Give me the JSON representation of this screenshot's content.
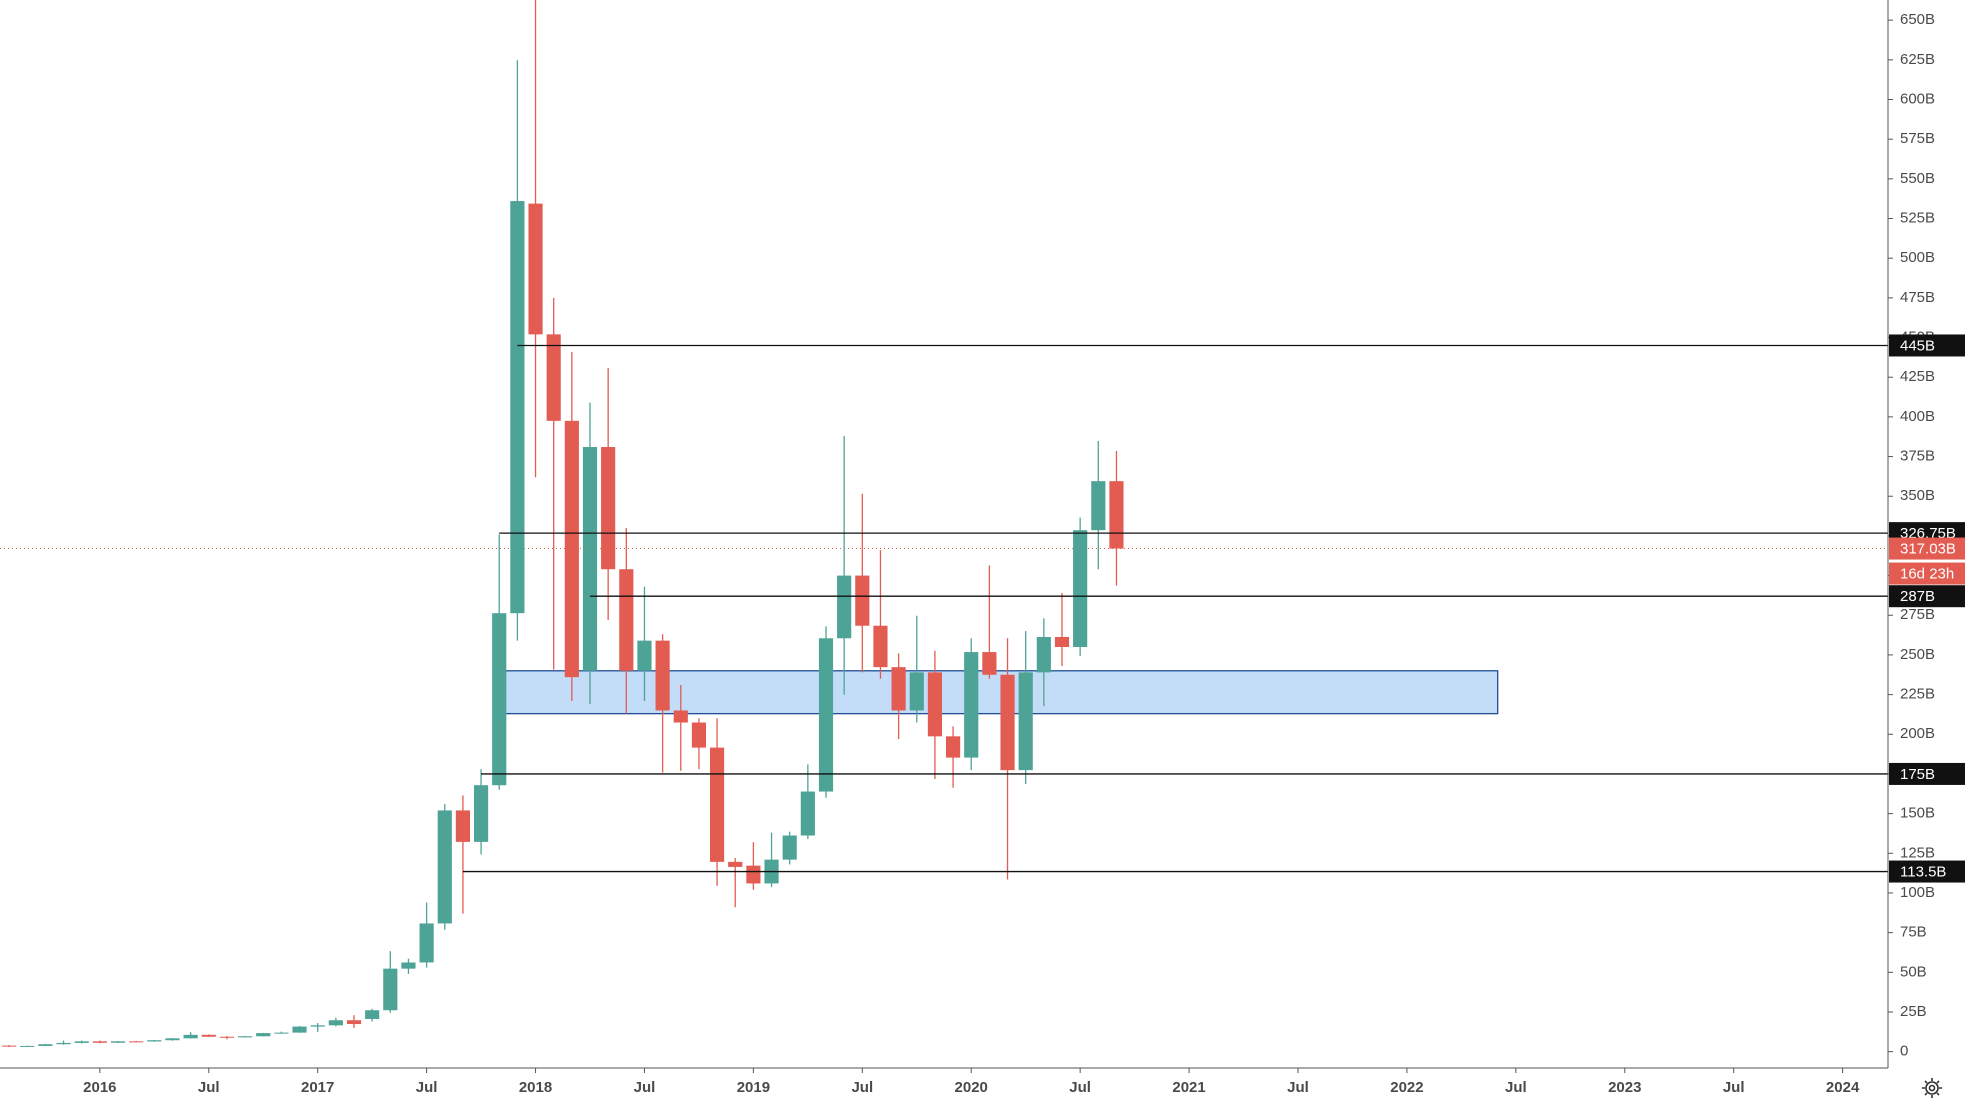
{
  "chart_data": {
    "type": "candlestick",
    "x": [
      "2015-08",
      "2015-09",
      "2015-10",
      "2015-11",
      "2015-12",
      "2016-01",
      "2016-02",
      "2016-03",
      "2016-04",
      "2016-05",
      "2016-06",
      "2016-07",
      "2016-08",
      "2016-09",
      "2016-10",
      "2016-11",
      "2016-12",
      "2017-01",
      "2017-02",
      "2017-03",
      "2017-04",
      "2017-05",
      "2017-06",
      "2017-07",
      "2017-08",
      "2017-09",
      "2017-10",
      "2017-11",
      "2017-12",
      "2018-01",
      "2018-02",
      "2018-03",
      "2018-04",
      "2018-05",
      "2018-06",
      "2018-07",
      "2018-08",
      "2018-09",
      "2018-10",
      "2018-11",
      "2018-12",
      "2019-01",
      "2019-02",
      "2019-03",
      "2019-04",
      "2019-05",
      "2019-06",
      "2019-07",
      "2019-08",
      "2019-09",
      "2019-10",
      "2019-11",
      "2019-12",
      "2020-01",
      "2020-02",
      "2020-03",
      "2020-04",
      "2020-05",
      "2020-06",
      "2020-07",
      "2020-08",
      "2020-09"
    ],
    "open": [
      3.8,
      3.4,
      3.6,
      4.7,
      5.5,
      6.5,
      5.6,
      6.5,
      6.4,
      7.2,
      8.4,
      10.6,
      9.4,
      9.0,
      9.7,
      11.7,
      12.0,
      15.8,
      16.6,
      19.8,
      20.6,
      26.1,
      52.3,
      56.2,
      80.8,
      152.0,
      132.2,
      167.9,
      276.3,
      534.4,
      452.0,
      397.5,
      240.0,
      381.0,
      304.0,
      240.0,
      259.0,
      215.0,
      207.4,
      191.6,
      119.6,
      117.2,
      106.0,
      121.0,
      136.2,
      163.9,
      260.5,
      300.0,
      268.4,
      242.3,
      215.0,
      239.0,
      198.7,
      185.3,
      251.8,
      237.5,
      177.4,
      239.0,
      261.3,
      255.0,
      328.6,
      359.5
    ],
    "high": [
      4.1,
      3.8,
      4.9,
      7.0,
      7.0,
      7.0,
      6.6,
      6.8,
      7.4,
      8.6,
      12.3,
      10.9,
      9.8,
      9.8,
      11.8,
      12.6,
      16.2,
      18.0,
      21.4,
      23.0,
      27.0,
      63.3,
      58.6,
      94.0,
      156.0,
      161.5,
      178.0,
      326.0,
      624.7,
      680.0,
      475.0,
      441.0,
      409.0,
      430.7,
      330.0,
      293.0,
      263.0,
      231.0,
      210.0,
      210.0,
      122.0,
      132.0,
      138.0,
      138.6,
      181.0,
      268.0,
      388.0,
      351.5,
      316.0,
      251.0,
      274.7,
      252.6,
      205.0,
      260.5,
      306.4,
      260.5,
      265.0,
      273.0,
      289.0,
      336.5,
      384.8,
      378.5
    ],
    "low": [
      2.9,
      3.3,
      3.5,
      4.4,
      5.2,
      5.3,
      5.5,
      6.1,
      6.3,
      6.9,
      8.3,
      9.3,
      7.8,
      8.9,
      9.6,
      11.4,
      11.9,
      12.5,
      16.0,
      15.0,
      19.0,
      24.5,
      49.0,
      53.0,
      76.8,
      87.0,
      124.3,
      165.0,
      259.0,
      362.0,
      240.7,
      221.0,
      219.0,
      272.0,
      213.0,
      221.0,
      175.8,
      177.0,
      178.0,
      104.5,
      91.0,
      102.0,
      103.7,
      118.0,
      134.0,
      160.0,
      224.9,
      239.0,
      235.0,
      197.0,
      207.4,
      171.8,
      166.3,
      177.4,
      235.0,
      108.5,
      168.6,
      217.7,
      243.0,
      249.4,
      304.0,
      293.7
    ],
    "close": [
      3.4,
      3.6,
      4.7,
      5.5,
      6.5,
      5.6,
      6.5,
      6.4,
      7.2,
      8.4,
      10.6,
      9.4,
      9.0,
      9.7,
      11.7,
      12.0,
      15.8,
      16.6,
      19.8,
      17.4,
      26.1,
      52.3,
      56.2,
      80.8,
      152.0,
      132.2,
      167.9,
      276.3,
      536.0,
      452.0,
      397.5,
      236.0,
      381.0,
      304.0,
      240.0,
      259.0,
      215.0,
      207.4,
      191.6,
      119.6,
      116.4,
      106.0,
      121.0,
      136.2,
      163.9,
      260.5,
      300.0,
      268.4,
      242.3,
      215.0,
      239.0,
      198.7,
      185.3,
      251.8,
      237.5,
      177.4,
      239.0,
      261.3,
      255.0,
      328.6,
      359.5,
      317.03
    ],
    "up_color": "#4ea397",
    "down_color": "#e25c52",
    "xlim": [
      "2015-08",
      "2024-03"
    ],
    "xticks": [
      {
        "value": "2016-01",
        "label": "2016"
      },
      {
        "value": "2016-07",
        "label": "Jul"
      },
      {
        "value": "2017-01",
        "label": "2017"
      },
      {
        "value": "2017-07",
        "label": "Jul"
      },
      {
        "value": "2018-01",
        "label": "2018"
      },
      {
        "value": "2018-07",
        "label": "Jul"
      },
      {
        "value": "2019-01",
        "label": "2019"
      },
      {
        "value": "2019-07",
        "label": "Jul"
      },
      {
        "value": "2020-01",
        "label": "2020"
      },
      {
        "value": "2020-07",
        "label": "Jul"
      },
      {
        "value": "2021-01",
        "label": "2021"
      },
      {
        "value": "2021-07",
        "label": "Jul"
      },
      {
        "value": "2022-01",
        "label": "2022"
      },
      {
        "value": "2022-07",
        "label": "Jul"
      },
      {
        "value": "2023-01",
        "label": "2023"
      },
      {
        "value": "2023-07",
        "label": "Jul"
      },
      {
        "value": "2024-01",
        "label": "2024"
      }
    ],
    "ylim": [
      -10.3,
      662.7
    ],
    "yticks": [
      0,
      {
        "value": 25,
        "label": "25B"
      },
      {
        "value": 50,
        "label": "50B"
      },
      {
        "value": 75,
        "label": "75B"
      },
      {
        "value": 100,
        "label": "100B"
      },
      {
        "value": 125,
        "label": "125B"
      },
      {
        "value": 150,
        "label": "150B"
      },
      {
        "value": 175,
        "label": "175B"
      },
      {
        "value": 200,
        "label": "200B"
      },
      {
        "value": 225,
        "label": "225B"
      },
      {
        "value": 250,
        "label": "250B"
      },
      {
        "value": 275,
        "label": "275B"
      },
      {
        "value": 300,
        "label": "300B"
      },
      {
        "value": 325,
        "label": "325B"
      },
      {
        "value": 350,
        "label": "350B"
      },
      {
        "value": 375,
        "label": "375B"
      },
      {
        "value": 400,
        "label": "400B"
      },
      {
        "value": 425,
        "label": "425B"
      },
      {
        "value": 450,
        "label": "450B"
      },
      {
        "value": 475,
        "label": "475B"
      },
      {
        "value": 500,
        "label": "500B"
      },
      {
        "value": 525,
        "label": "525B"
      },
      {
        "value": 550,
        "label": "550B"
      },
      {
        "value": 575,
        "label": "575B"
      },
      {
        "value": 600,
        "label": "600B"
      },
      {
        "value": 625,
        "label": "625B"
      },
      {
        "value": 650,
        "label": "650B"
      }
    ],
    "levels": [
      {
        "value": 445,
        "label": "445B",
        "from": "2017-12"
      },
      {
        "value": 326.75,
        "label": "326.75B",
        "from": "2017-11"
      },
      {
        "value": 287,
        "label": "287B",
        "from": "2018-04"
      },
      {
        "value": 175,
        "label": "175B",
        "from": "2017-10"
      },
      {
        "value": 113.5,
        "label": "113.5B",
        "from": "2017-09"
      }
    ],
    "zone": {
      "from": "2017-11",
      "to": "2022-06",
      "low": 213,
      "high": 240,
      "color": "#c3dcf8",
      "border": "#1f4e96"
    },
    "current_price": {
      "value": 317.03,
      "label": "317.03B",
      "countdown": "16d 23h"
    }
  }
}
